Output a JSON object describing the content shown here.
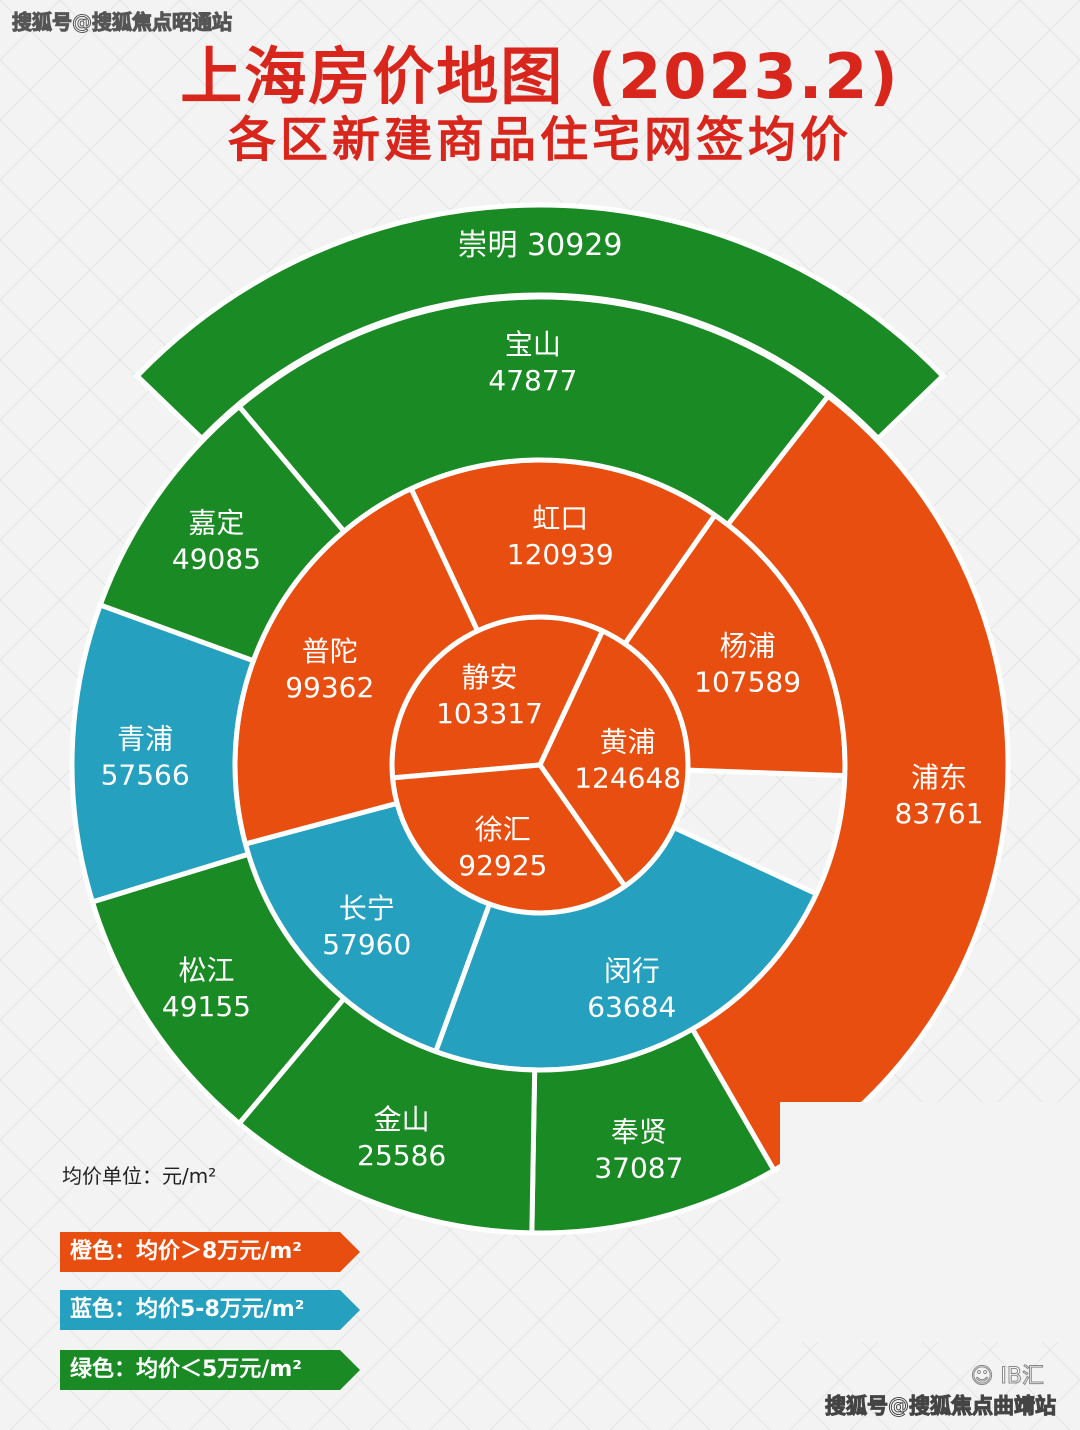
{
  "watermark_top": "搜狐号@搜狐焦点昭通站",
  "watermark_bottom": "搜狐号@搜狐焦点曲靖站",
  "watermark_logo": "IB汇",
  "title_line1": "上海房价地图 (2023.2)",
  "title_line2": "各区新建商品住宅网签均价",
  "unit_label": "均价单位：元/m²",
  "legend": {
    "orange": "橙色：均价＞8万元/m²",
    "blue": "蓝色：均价5-8万元/m²",
    "green": "绿色：均价＜5万元/m²"
  },
  "colors": {
    "orange": "#e84e0f",
    "blue": "#26a0bf",
    "green": "#1a8a24"
  },
  "chart_data": {
    "type": "sunburst",
    "rings": [
      {
        "ring": "inner",
        "segments": [
          {
            "name": "静安",
            "value": 103317,
            "color": "orange"
          },
          {
            "name": "黄浦",
            "value": 124648,
            "color": "orange"
          },
          {
            "name": "徐汇",
            "value": 92925,
            "color": "orange"
          }
        ]
      },
      {
        "ring": "middle",
        "segments": [
          {
            "name": "虹口",
            "value": 120939,
            "color": "orange"
          },
          {
            "name": "杨浦",
            "value": 107589,
            "color": "orange"
          },
          {
            "name": "闵行",
            "value": 63684,
            "color": "blue"
          },
          {
            "name": "长宁",
            "value": 57960,
            "color": "blue"
          },
          {
            "name": "普陀",
            "value": 99362,
            "color": "orange"
          }
        ]
      },
      {
        "ring": "outer",
        "segments": [
          {
            "name": "宝山",
            "value": 47877,
            "color": "green"
          },
          {
            "name": "浦东",
            "value": 83761,
            "color": "orange"
          },
          {
            "name": "奉贤",
            "value": 37087,
            "color": "green"
          },
          {
            "name": "金山",
            "value": 25586,
            "color": "green"
          },
          {
            "name": "松江",
            "value": 49155,
            "color": "green"
          },
          {
            "name": "青浦",
            "value": 57566,
            "color": "blue"
          },
          {
            "name": "嘉定",
            "value": 49085,
            "color": "green"
          }
        ]
      },
      {
        "ring": "top-band",
        "segments": [
          {
            "name": "崇明",
            "value": 30929,
            "color": "green"
          }
        ]
      }
    ]
  }
}
